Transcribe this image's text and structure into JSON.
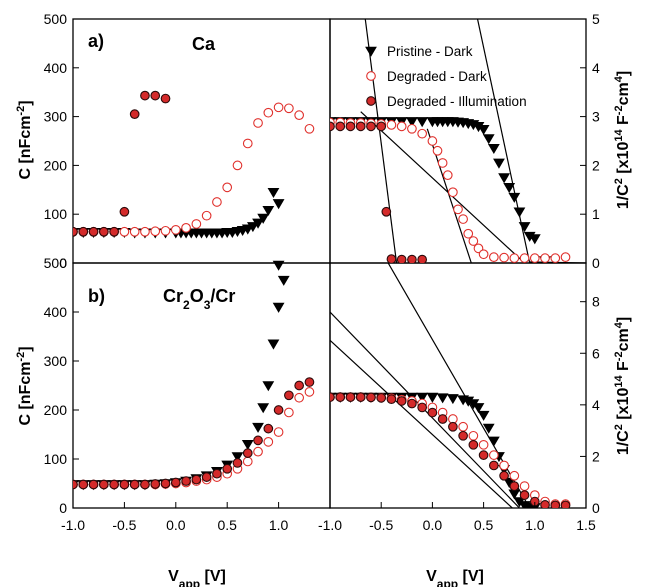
{
  "chart_data": [
    {
      "id": "a-left",
      "type": "scatter",
      "panel_label": "a)",
      "material": "Ca",
      "ylabel": "C [nFcm",
      "ylabel_sup": "-2",
      "ylim": [
        0,
        500
      ],
      "yticks": [
        0,
        100,
        200,
        300,
        400,
        500
      ],
      "xlim": [
        -1.0,
        1.5
      ],
      "series": [
        {
          "name": "Pristine - Dark",
          "marker": "triangle-down",
          "color": "#000000",
          "x": [
            -1.0,
            -0.9,
            -0.8,
            -0.7,
            -0.6,
            -0.5,
            -0.4,
            -0.3,
            -0.2,
            -0.1,
            0.0,
            0.05,
            0.1,
            0.15,
            0.2,
            0.25,
            0.3,
            0.35,
            0.4,
            0.45,
            0.5,
            0.55,
            0.6,
            0.65,
            0.7,
            0.75,
            0.8,
            0.85,
            0.9,
            0.95,
            1.0
          ],
          "y": [
            63,
            63,
            63,
            63,
            63,
            63,
            62,
            62,
            62,
            62,
            62,
            62,
            62,
            62,
            62,
            62,
            62,
            62,
            62,
            62,
            63,
            63,
            65,
            67,
            70,
            75,
            82,
            92,
            108,
            145,
            122
          ]
        },
        {
          "name": "Degraded - Dark",
          "marker": "circle-open",
          "color": "#e0302c",
          "x": [
            -1.0,
            -0.9,
            -0.8,
            -0.7,
            -0.6,
            -0.5,
            -0.4,
            -0.3,
            -0.2,
            -0.1,
            0.0,
            0.1,
            0.2,
            0.3,
            0.4,
            0.5,
            0.6,
            0.7,
            0.8,
            0.9,
            1.0,
            1.1,
            1.2,
            1.3
          ],
          "y": [
            64,
            64,
            64,
            64,
            64,
            64,
            64,
            64,
            65,
            66,
            68,
            72,
            80,
            97,
            125,
            155,
            200,
            245,
            287,
            308,
            319,
            317,
            303,
            275
          ]
        },
        {
          "name": "Degraded - Illumination",
          "marker": "circle-filled",
          "color": "#d42a2a",
          "x": [
            -1.0,
            -0.9,
            -0.8,
            -0.7,
            -0.6,
            -0.5,
            -0.4,
            -0.3,
            -0.2,
            -0.1
          ],
          "y": [
            64,
            64,
            64,
            64,
            64,
            105,
            305,
            343,
            343,
            337
          ]
        }
      ]
    },
    {
      "id": "a-right",
      "type": "scatter",
      "ylabel": "1/C",
      "ylabel_sup1": "2",
      "ylabel_mid": " [x10",
      "ylabel_sup2": "14",
      "ylabel_mid2": " F",
      "ylabel_sup3": "-2",
      "ylabel_mid3": "cm",
      "ylabel_sup4": "4",
      "ylabel_end": "]",
      "ylim": [
        0,
        5
      ],
      "yticks": [
        0,
        1,
        2,
        3,
        4,
        5
      ],
      "xlim": [
        -1.0,
        1.5
      ],
      "series": [
        {
          "name": "Pristine - Dark",
          "x": [
            -1.0,
            -0.9,
            -0.8,
            -0.7,
            -0.6,
            -0.5,
            -0.4,
            -0.3,
            -0.2,
            -0.1,
            0.0,
            0.05,
            0.1,
            0.15,
            0.2,
            0.25,
            0.3,
            0.35,
            0.4,
            0.45,
            0.5,
            0.55,
            0.6,
            0.65,
            0.7,
            0.75,
            0.8,
            0.85,
            0.9,
            0.95,
            1.0,
            1.1
          ],
          "y": [
            2.9,
            2.9,
            2.9,
            2.9,
            2.9,
            2.9,
            2.9,
            2.9,
            2.9,
            2.9,
            2.9,
            2.9,
            2.9,
            2.9,
            2.9,
            2.89,
            2.88,
            2.86,
            2.84,
            2.8,
            2.74,
            2.55,
            2.35,
            2.05,
            1.75,
            1.55,
            1.35,
            1.05,
            0.75,
            0.55,
            0.5,
            0.05
          ]
        },
        {
          "name": "Degraded - Dark",
          "x": [
            -1.0,
            -0.9,
            -0.8,
            -0.7,
            -0.6,
            -0.5,
            -0.4,
            -0.3,
            -0.2,
            -0.1,
            0.0,
            0.05,
            0.1,
            0.15,
            0.2,
            0.25,
            0.3,
            0.35,
            0.4,
            0.45,
            0.5,
            0.6,
            0.7,
            0.8,
            0.9,
            1.0,
            1.1,
            1.2,
            1.3
          ],
          "y": [
            2.88,
            2.88,
            2.87,
            2.87,
            2.86,
            2.85,
            2.83,
            2.8,
            2.75,
            2.65,
            2.5,
            2.3,
            2.05,
            1.8,
            1.45,
            1.1,
            0.9,
            0.6,
            0.45,
            0.3,
            0.18,
            0.12,
            0.11,
            0.1,
            0.1,
            0.1,
            0.1,
            0.1,
            0.12
          ]
        },
        {
          "name": "Degraded - Illumination",
          "x": [
            -1.0,
            -0.9,
            -0.8,
            -0.7,
            -0.6,
            -0.5,
            -0.45,
            -0.4,
            -0.3,
            -0.2,
            -0.1
          ],
          "y": [
            2.8,
            2.8,
            2.8,
            2.8,
            2.8,
            2.8,
            1.05,
            0.08,
            0.07,
            0.07,
            0.07
          ]
        }
      ],
      "fit_lines": [
        {
          "x": [
            -0.68,
            -0.35
          ],
          "y": [
            5.4,
            0.0
          ]
        },
        {
          "x": [
            -0.7,
            0.9
          ],
          "y": [
            3.1,
            0.0
          ]
        },
        {
          "x": [
            -0.05,
            0.38
          ],
          "y": [
            2.75,
            0.0
          ]
        },
        {
          "x": [
            0.4,
            0.95
          ],
          "y": [
            5.4,
            0.0
          ]
        },
        {
          "x": [
            0.95,
            1.5
          ],
          "y": [
            0.02,
            0.0
          ]
        }
      ]
    },
    {
      "id": "b-left",
      "type": "scatter",
      "panel_label": "b)",
      "material_main": "Cr",
      "material_sub1": "2",
      "material_mid": "O",
      "material_sub2": "3",
      "material_end": "/Cr",
      "ylabel": "C [nFcm",
      "ylabel_sup": "-2",
      "xlabel": "V",
      "xlabel_sub": "app",
      "xlabel_end": " [V]",
      "ylim": [
        0,
        500
      ],
      "yticks": [
        0,
        100,
        200,
        300,
        400,
        500
      ],
      "xlim": [
        -1.0,
        1.5
      ],
      "xticks": [
        -1.0,
        -0.5,
        0.0,
        0.5,
        1.0
      ],
      "series": [
        {
          "name": "Pristine - Dark",
          "x": [
            -1.0,
            -0.9,
            -0.8,
            -0.7,
            -0.6,
            -0.5,
            -0.4,
            -0.3,
            -0.2,
            -0.1,
            0.0,
            0.1,
            0.2,
            0.3,
            0.4,
            0.5,
            0.6,
            0.7,
            0.8,
            0.85,
            0.9,
            0.95,
            1.0,
            1.05
          ],
          "y": [
            48,
            48,
            48,
            48,
            48,
            48,
            48,
            48,
            49,
            50,
            52,
            55,
            60,
            66,
            75,
            88,
            105,
            130,
            165,
            205,
            250,
            335,
            410,
            465
          ]
        },
        {
          "name": "Degraded - Dark",
          "x": [
            -1.0,
            -0.9,
            -0.8,
            -0.7,
            -0.6,
            -0.5,
            -0.4,
            -0.3,
            -0.2,
            -0.1,
            0.0,
            0.1,
            0.2,
            0.3,
            0.4,
            0.5,
            0.6,
            0.7,
            0.8,
            0.9,
            1.0,
            1.1,
            1.2,
            1.3
          ],
          "y": [
            48,
            48,
            48,
            48,
            48,
            48,
            48,
            48,
            48,
            49,
            50,
            52,
            55,
            58,
            63,
            70,
            80,
            95,
            115,
            135,
            155,
            195,
            225,
            237
          ]
        },
        {
          "name": "Degraded - Illumination",
          "x": [
            -1.0,
            -0.9,
            -0.8,
            -0.7,
            -0.6,
            -0.5,
            -0.4,
            -0.3,
            -0.2,
            -0.1,
            0.0,
            0.1,
            0.2,
            0.3,
            0.4,
            0.5,
            0.6,
            0.7,
            0.8,
            0.9,
            1.0,
            1.1,
            1.2,
            1.3
          ],
          "y": [
            48,
            48,
            48,
            48,
            48,
            48,
            48,
            48,
            49,
            50,
            52,
            55,
            58,
            63,
            70,
            80,
            92,
            112,
            138,
            162,
            200,
            230,
            250,
            257
          ]
        }
      ],
      "overflow_marker": {
        "x": 1.0,
        "y": 505
      }
    },
    {
      "id": "b-right",
      "type": "scatter",
      "ylabel": "1/C",
      "ylabel_sup1": "2",
      "ylabel_mid": " [x10",
      "ylabel_sup2": "14",
      "ylabel_mid2": " F",
      "ylabel_sup3": "-2",
      "ylabel_mid3": "cm",
      "ylabel_sup4": "4",
      "ylabel_end": "]",
      "xlabel": "V",
      "xlabel_sub": "app",
      "xlabel_end": " [V]",
      "ylim": [
        0,
        9.5
      ],
      "yticks": [
        0,
        2,
        4,
        6,
        8
      ],
      "xlim": [
        -1.0,
        1.5
      ],
      "xticks": [
        -1.0,
        -0.5,
        0.0,
        0.5,
        1.0,
        1.5
      ],
      "series": [
        {
          "name": "Pristine - Dark",
          "x": [
            -1.0,
            -0.9,
            -0.8,
            -0.7,
            -0.6,
            -0.5,
            -0.4,
            -0.3,
            -0.2,
            -0.1,
            0.0,
            0.1,
            0.2,
            0.3,
            0.35,
            0.4,
            0.45,
            0.5,
            0.55,
            0.6,
            0.65,
            0.7,
            0.75,
            0.8,
            0.85,
            0.9,
            0.95,
            1.0
          ],
          "y": [
            4.3,
            4.3,
            4.3,
            4.3,
            4.3,
            4.3,
            4.3,
            4.3,
            4.3,
            4.3,
            4.3,
            4.28,
            4.25,
            4.2,
            4.15,
            4.05,
            3.9,
            3.6,
            3.1,
            2.6,
            2.0,
            1.5,
            1.0,
            0.55,
            0.25,
            0.1,
            0.05,
            0.02
          ]
        },
        {
          "name": "Degraded - Dark",
          "x": [
            -1.0,
            -0.9,
            -0.8,
            -0.7,
            -0.6,
            -0.5,
            -0.4,
            -0.3,
            -0.2,
            -0.1,
            0.0,
            0.1,
            0.2,
            0.3,
            0.4,
            0.5,
            0.6,
            0.7,
            0.8,
            0.9,
            1.0,
            1.1,
            1.2,
            1.3
          ],
          "y": [
            4.3,
            4.3,
            4.3,
            4.3,
            4.29,
            4.28,
            4.25,
            4.2,
            4.15,
            4.05,
            3.9,
            3.7,
            3.45,
            3.15,
            2.8,
            2.45,
            2.05,
            1.65,
            1.25,
            0.85,
            0.5,
            0.25,
            0.15,
            0.15
          ]
        },
        {
          "name": "Degraded - Illumination",
          "x": [
            -1.0,
            -0.9,
            -0.8,
            -0.7,
            -0.6,
            -0.5,
            -0.4,
            -0.3,
            -0.2,
            -0.1,
            0.0,
            0.1,
            0.2,
            0.3,
            0.4,
            0.5,
            0.6,
            0.7,
            0.8,
            0.9,
            1.0,
            1.1,
            1.2,
            1.3
          ],
          "y": [
            4.3,
            4.3,
            4.3,
            4.3,
            4.29,
            4.27,
            4.22,
            4.15,
            4.05,
            3.9,
            3.7,
            3.45,
            3.15,
            2.8,
            2.45,
            2.05,
            1.65,
            1.25,
            0.85,
            0.5,
            0.25,
            0.12,
            0.1,
            0.1
          ]
        }
      ],
      "fit_lines": [
        {
          "x": [
            -0.65,
            0.95
          ],
          "y": [
            11.0,
            0.0
          ]
        },
        {
          "x": [
            -1.0,
            0.85
          ],
          "y": [
            7.6,
            0.0
          ]
        },
        {
          "x": [
            -1.0,
            0.78
          ],
          "y": [
            6.5,
            0.0
          ]
        }
      ]
    }
  ],
  "legend": {
    "placement": "top-right",
    "items": [
      {
        "label": "Pristine - Dark",
        "marker": "triangle-down"
      },
      {
        "label": "Degraded - Dark",
        "marker": "circle-open"
      },
      {
        "label": "Degraded - Illumination",
        "marker": "circle-filled"
      }
    ]
  },
  "colors": {
    "pristine": "#000000",
    "degraded_dark": "#e0302c",
    "degraded_illum": "#d42a2a"
  }
}
